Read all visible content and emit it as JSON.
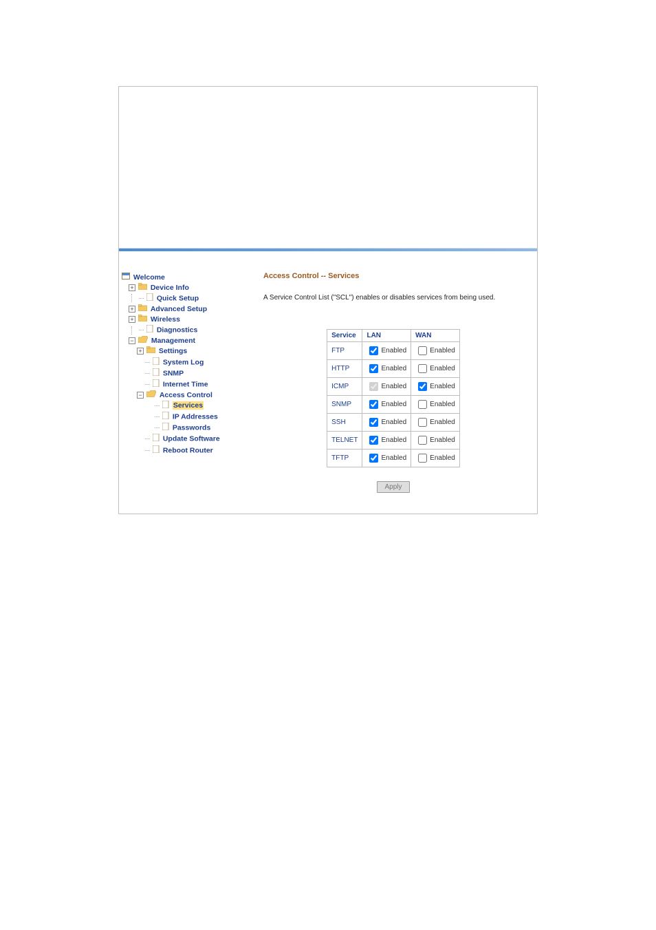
{
  "nav": {
    "welcome": "Welcome",
    "deviceInfo": "Device Info",
    "quickSetup": "Quick Setup",
    "advancedSetup": "Advanced Setup",
    "wireless": "Wireless",
    "diagnostics": "Diagnostics",
    "management": "Management",
    "settings": "Settings",
    "systemLog": "System Log",
    "snmp": "SNMP",
    "internetTime": "Internet Time",
    "accessControl": "Access Control",
    "services": "Services",
    "ipAddresses": "IP Addresses",
    "passwords": "Passwords",
    "updateSoftware": "Update Software",
    "rebootRouter": "Reboot Router"
  },
  "content": {
    "title": "Access Control -- Services",
    "description": "A Service Control List (\"SCL\") enables or disables services from being used.",
    "headers": {
      "service": "Service",
      "lan": "LAN",
      "wan": "WAN"
    },
    "enabledLabel": "Enabled",
    "apply": "Apply",
    "rows": [
      {
        "name": "FTP",
        "lan": true,
        "lanDisabled": false,
        "wan": false,
        "wanDisabled": false
      },
      {
        "name": "HTTP",
        "lan": true,
        "lanDisabled": false,
        "wan": false,
        "wanDisabled": false
      },
      {
        "name": "ICMP",
        "lan": true,
        "lanDisabled": true,
        "wan": true,
        "wanDisabled": false
      },
      {
        "name": "SNMP",
        "lan": true,
        "lanDisabled": false,
        "wan": false,
        "wanDisabled": false
      },
      {
        "name": "SSH",
        "lan": true,
        "lanDisabled": false,
        "wan": false,
        "wanDisabled": false
      },
      {
        "name": "TELNET",
        "lan": true,
        "lanDisabled": false,
        "wan": false,
        "wanDisabled": false
      },
      {
        "name": "TFTP",
        "lan": true,
        "lanDisabled": false,
        "wan": false,
        "wanDisabled": false
      }
    ]
  },
  "colors": {
    "folderClosed": "#f4c963",
    "folderOpen": "#f4c963",
    "page": "#ffffff",
    "pageBorder": "#9b7f4d",
    "accent": "#4a8cd6",
    "navText": "#20408f",
    "titleColor": "#9a5a20"
  }
}
